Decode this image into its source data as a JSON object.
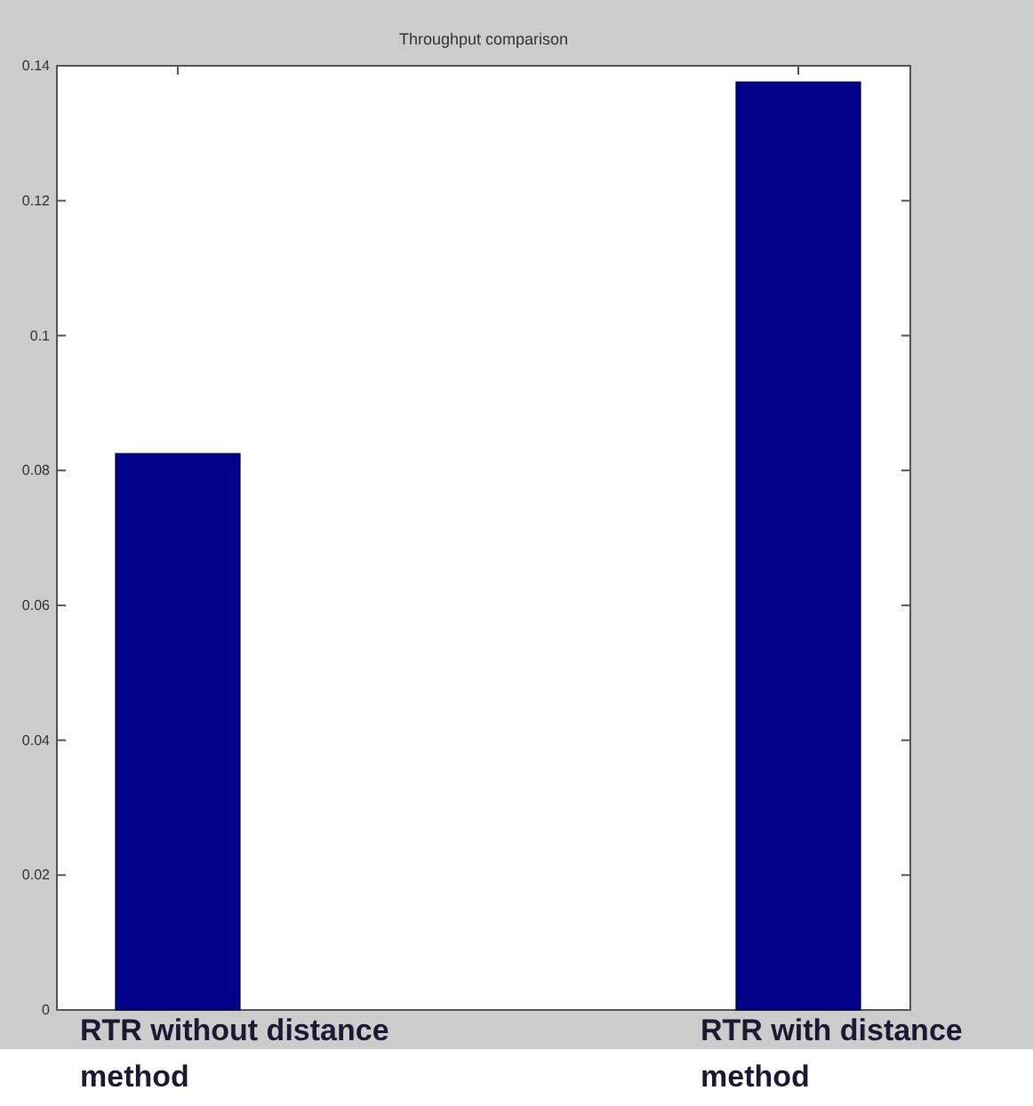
{
  "chart_data": {
    "type": "bar",
    "title": "Throughput comparison",
    "categories": [
      "RTR without distance method",
      "RTR with distance method"
    ],
    "values": [
      0.0825,
      0.1376
    ],
    "color": "#00008b",
    "ylim": [
      0,
      0.14
    ],
    "yticks": [
      0,
      0.02,
      0.04,
      0.06,
      0.08,
      0.1,
      0.12,
      0.14
    ],
    "grid": false
  }
}
